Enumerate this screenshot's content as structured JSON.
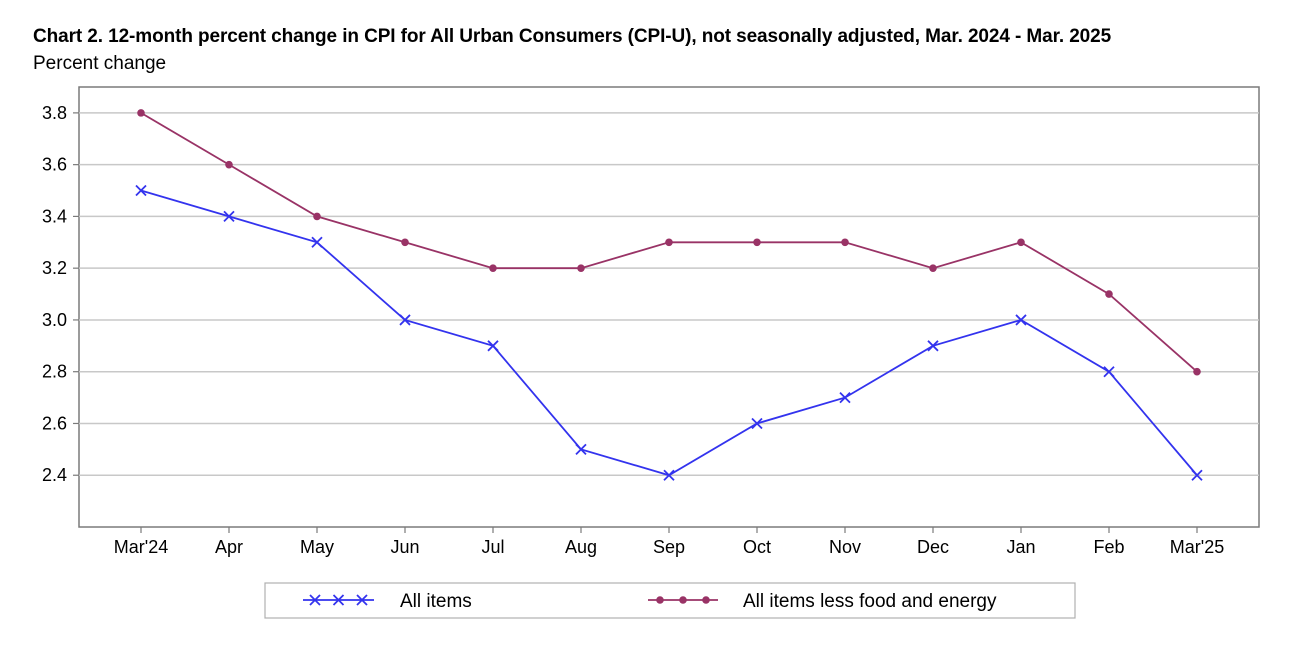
{
  "chart_data": {
    "type": "line",
    "title": "Chart 2. 12-month percent change in CPI for All Urban Consumers (CPI-U), not seasonally adjusted, Mar. 2024 - Mar. 2025",
    "ylabel": "Percent change",
    "xlabel": "",
    "categories": [
      "Mar'24",
      "Apr",
      "May",
      "Jun",
      "Jul",
      "Aug",
      "Sep",
      "Oct",
      "Nov",
      "Dec",
      "Jan",
      "Feb",
      "Mar'25"
    ],
    "ylim": [
      2.2,
      3.9
    ],
    "yticks": [
      "2.4",
      "2.6",
      "2.8",
      "3.0",
      "3.2",
      "3.4",
      "3.6",
      "3.8"
    ],
    "grid": "horizontal",
    "legend_position": "bottom",
    "series": [
      {
        "name": "All items",
        "values": [
          3.5,
          3.4,
          3.3,
          3.0,
          2.9,
          2.5,
          2.4,
          2.6,
          2.7,
          2.9,
          3.0,
          2.8,
          2.4
        ],
        "color": "#3333ee",
        "marker": "x"
      },
      {
        "name": "All items less food and energy",
        "values": [
          3.8,
          3.6,
          3.4,
          3.3,
          3.2,
          3.2,
          3.3,
          3.3,
          3.3,
          3.2,
          3.3,
          3.1,
          2.8
        ],
        "color": "#993366",
        "marker": "circle"
      }
    ]
  }
}
